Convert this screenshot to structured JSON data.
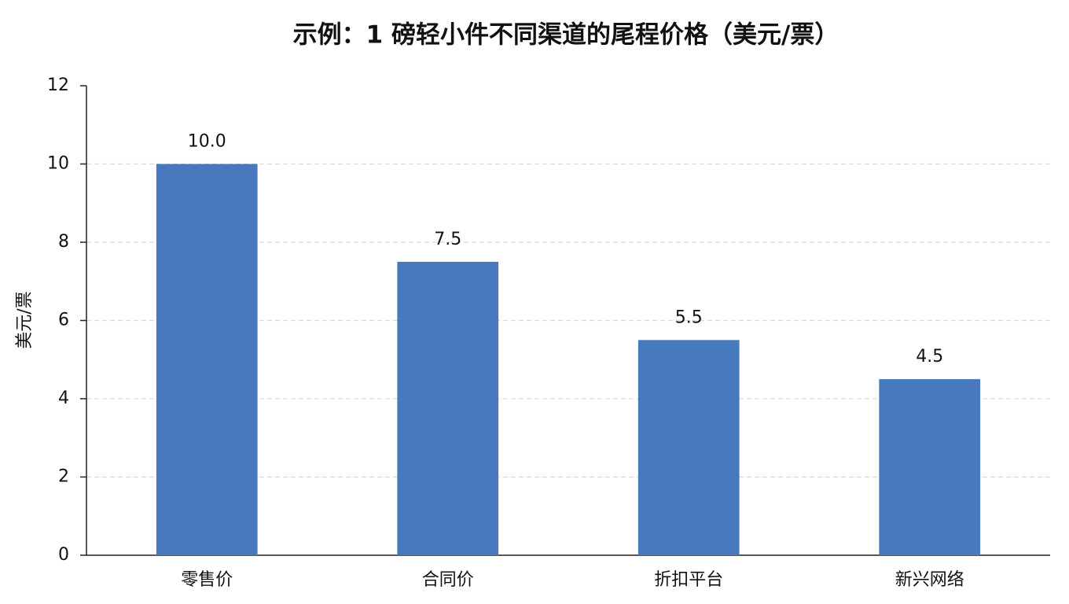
{
  "chart_data": {
    "type": "bar",
    "title": "示例：1 磅轻小件不同渠道的尾程价格（美元/票）",
    "y_label": "美元/票",
    "categories": [
      "零售价",
      "合同价",
      "折扣平台",
      "新兴网络"
    ],
    "values": [
      10,
      7.5,
      5.5,
      4.5
    ],
    "value_labels": [
      "10.0",
      "7.5",
      "5.5",
      "4.5"
    ],
    "color": "#4878bd",
    "ylim": [
      0,
      12
    ],
    "yticks": [
      0,
      2,
      4,
      6,
      8,
      10,
      12
    ],
    "grid": true
  }
}
